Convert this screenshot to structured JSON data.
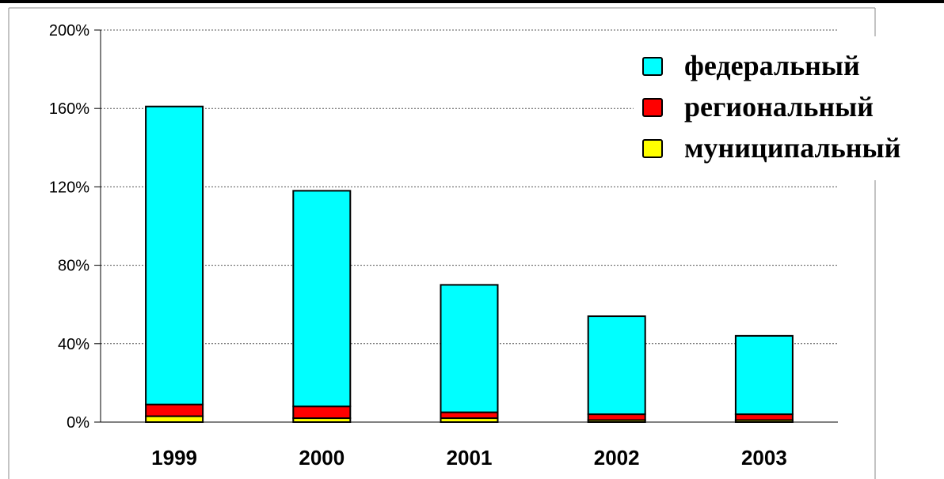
{
  "chart_data": {
    "type": "bar",
    "stacked": true,
    "title": "",
    "xlabel": "",
    "ylabel": "",
    "categories": [
      "1999",
      "2000",
      "2001",
      "2002",
      "2003"
    ],
    "ylim": [
      0,
      200
    ],
    "yticks": [
      "0%",
      "40%",
      "80%",
      "120%",
      "160%",
      "200%"
    ],
    "ytick_values": [
      0,
      40,
      80,
      120,
      160,
      200
    ],
    "grid": true,
    "legend_position": "top-right",
    "series": [
      {
        "name": "муниципальный",
        "color": "#ffff00",
        "values": [
          3,
          2,
          2,
          1,
          1
        ]
      },
      {
        "name": "региональный",
        "color": "#ff0000",
        "values": [
          6,
          6,
          3,
          3,
          3
        ]
      },
      {
        "name": "федеральный",
        "color": "#00ffff",
        "values": [
          152,
          110,
          65,
          50,
          40
        ]
      }
    ],
    "legend_order": [
      2,
      1,
      0
    ]
  }
}
